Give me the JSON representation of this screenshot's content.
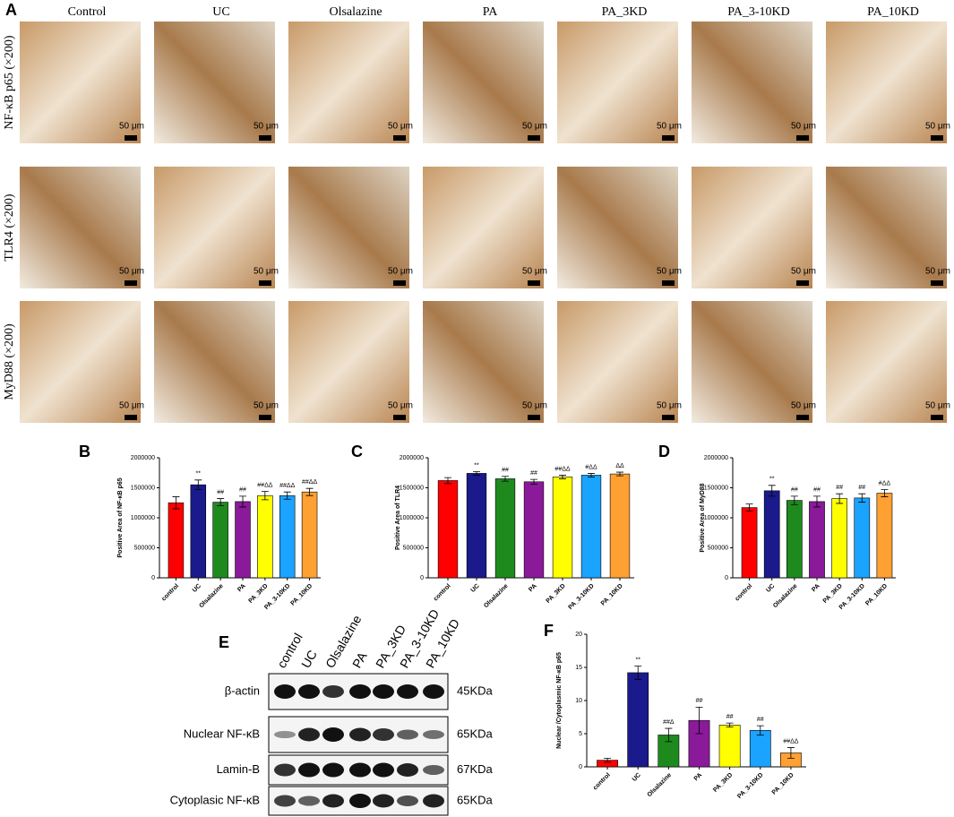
{
  "panel_a": {
    "panel": "A",
    "columns": [
      "Control",
      "UC",
      "Olsalazine",
      "PA",
      "PA_3KD",
      "PA_3-10KD",
      "PA_10KD"
    ],
    "rows": [
      "NF-κB p65 (×200)",
      "TLR4 (×200)",
      "MyD88 (×200)"
    ],
    "scale_label": "50 μm"
  },
  "panel_e": {
    "panel": "E",
    "lanes": [
      "control",
      "UC",
      "Olsalazine",
      "PA",
      "PA_3KD",
      "PA_3-10KD",
      "PA_10KD"
    ],
    "proteins": [
      "β-actin",
      "Nuclear NF-κB",
      "Lamin-B",
      "Cytoplasic NF-κB"
    ],
    "sizes": [
      "45KDa",
      "65KDa",
      "67KDa",
      "65KDa"
    ]
  },
  "chart_data": [
    {
      "type": "bar",
      "panel": "B",
      "y_label": "Positive Area of NF-κB p65",
      "categories": [
        "control",
        "UC",
        "Olsalazine",
        "PA",
        "PA_3KD",
        "PA_3-10KD",
        "PA_10KD"
      ],
      "colors": [
        "#ff0000",
        "#1a1a8c",
        "#1e8a1e",
        "#8a1a9a",
        "#ffff00",
        "#1aa3ff",
        "#ffa033"
      ],
      "values": [
        1250000,
        1550000,
        1260000,
        1270000,
        1370000,
        1370000,
        1430000
      ],
      "errors": [
        100000,
        80000,
        60000,
        90000,
        70000,
        60000,
        60000
      ],
      "annotations": [
        null,
        "**",
        "##",
        "##",
        "##ΔΔ",
        "##ΔΔ",
        "##ΔΔ"
      ],
      "ylim": [
        0,
        2000000
      ],
      "yticks": [
        0,
        500000,
        1000000,
        1500000,
        2000000
      ]
    },
    {
      "type": "bar",
      "panel": "C",
      "y_label": "Positive Area of TLR4",
      "categories": [
        "control",
        "UC",
        "Olsalazine",
        "PA",
        "PA_3KD",
        "PA_3-10KD",
        "PA_10KD"
      ],
      "colors": [
        "#ff0000",
        "#1a1a8c",
        "#1e8a1e",
        "#8a1a9a",
        "#ffff00",
        "#1aa3ff",
        "#ffa033"
      ],
      "values": [
        1620000,
        1740000,
        1650000,
        1600000,
        1680000,
        1710000,
        1730000
      ],
      "errors": [
        50000,
        30000,
        40000,
        40000,
        30000,
        30000,
        30000
      ],
      "annotations": [
        null,
        "**",
        "##",
        "##",
        "##ΔΔ",
        "#ΔΔ",
        "ΔΔ"
      ],
      "ylim": [
        0,
        2000000
      ],
      "yticks": [
        0,
        500000,
        1000000,
        1500000,
        2000000
      ]
    },
    {
      "type": "bar",
      "panel": "D",
      "y_label": "Positive Area of MyD88",
      "categories": [
        "control",
        "UC",
        "Olsalazine",
        "PA",
        "PA_3KD",
        "PA_3-10KD",
        "PA_10KD"
      ],
      "colors": [
        "#ff0000",
        "#1a1a8c",
        "#1e8a1e",
        "#8a1a9a",
        "#ffff00",
        "#1aa3ff",
        "#ffa033"
      ],
      "values": [
        1170000,
        1450000,
        1290000,
        1270000,
        1320000,
        1330000,
        1410000
      ],
      "errors": [
        60000,
        90000,
        70000,
        90000,
        80000,
        70000,
        60000
      ],
      "annotations": [
        null,
        "**",
        "##",
        "##",
        "##",
        "##",
        "#ΔΔ"
      ],
      "ylim": [
        0,
        2000000
      ],
      "yticks": [
        0,
        500000,
        1000000,
        1500000,
        2000000
      ]
    },
    {
      "type": "bar",
      "panel": "F",
      "y_label": "Nuclear /Cytoplasmic NF-κB p65",
      "categories": [
        "control",
        "UC",
        "Olsalazine",
        "PA",
        "PA_3KD",
        "PA_3-10KD",
        "PA_10KD"
      ],
      "colors": [
        "#ff0000",
        "#1a1a8c",
        "#1e8a1e",
        "#8a1a9a",
        "#ffff00",
        "#1aa3ff",
        "#ffa033"
      ],
      "values": [
        1.0,
        14.2,
        4.8,
        7.0,
        6.3,
        5.5,
        2.1
      ],
      "errors": [
        0.3,
        1.0,
        1.0,
        2.0,
        0.3,
        0.7,
        0.8
      ],
      "annotations": [
        null,
        "**",
        "##Δ",
        "##",
        "##",
        "##",
        "##ΔΔ"
      ],
      "ylim": [
        0,
        20
      ],
      "yticks": [
        0,
        5,
        10,
        15,
        20
      ]
    }
  ]
}
